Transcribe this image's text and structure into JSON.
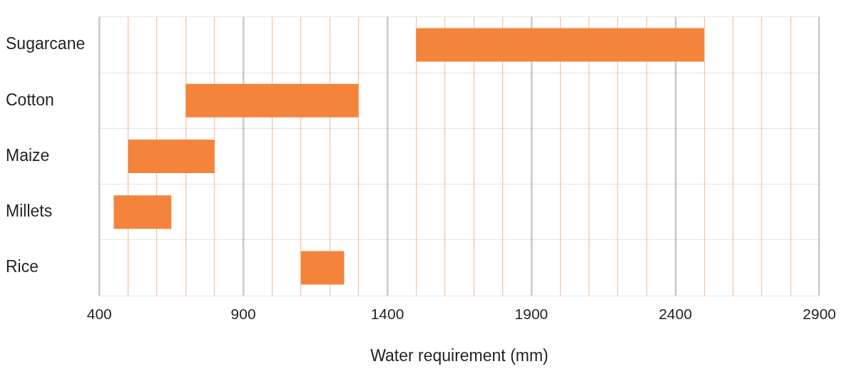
{
  "chart_data": {
    "type": "bar",
    "orientation": "horizontal",
    "xlabel": "Water requirement (mm)",
    "categories": [
      "Sugarcane",
      "Cotton",
      "Maize",
      "Millets",
      "Rice"
    ],
    "base": [
      1500,
      700,
      500,
      450,
      1100
    ],
    "values": [
      1000,
      600,
      300,
      200,
      150
    ],
    "color": "#f4843c",
    "xlim": [
      400,
      2900
    ],
    "xticks": [
      400,
      {
        "value": 500,
        "label": null
      },
      {
        "value": 600,
        "label": null
      },
      {
        "value": 700,
        "label": null
      },
      {
        "value": 800,
        "label": null
      },
      900,
      {
        "value": 1000,
        "label": null
      },
      {
        "value": 1100,
        "label": null
      },
      {
        "value": 1200,
        "label": null
      },
      {
        "value": 1300,
        "label": null
      },
      1400,
      {
        "value": 1500,
        "label": null
      },
      {
        "value": 1600,
        "label": null
      },
      {
        "value": 1700,
        "label": null
      },
      {
        "value": 1800,
        "label": null
      },
      1900,
      {
        "value": 2000,
        "label": null
      },
      {
        "value": 2100,
        "label": null
      },
      {
        "value": 2200,
        "label": null
      },
      {
        "value": 2300,
        "label": null
      },
      2400,
      {
        "value": 2500,
        "label": null
      },
      {
        "value": 2600,
        "label": null
      },
      {
        "value": 2700,
        "label": null
      },
      {
        "value": 2800,
        "label": null
      },
      2900
    ],
    "grid": true
  }
}
